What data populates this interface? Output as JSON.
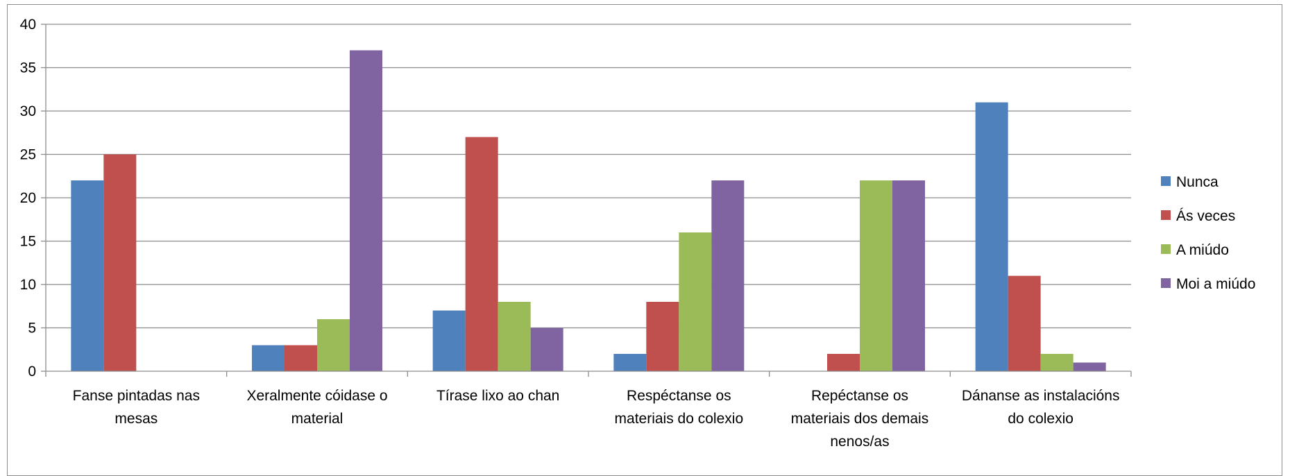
{
  "chart_data": {
    "type": "bar",
    "categories": [
      [
        "Fanse pintadas nas",
        "mesas"
      ],
      [
        "Xeralmente cóidase o",
        "material"
      ],
      [
        "Tírase lixo ao chan"
      ],
      [
        "Respéctanse os",
        "materiais do colexio"
      ],
      [
        "Repéctanse os",
        "materiais dos demais",
        "nenos/as"
      ],
      [
        "Dánanse as instalacións",
        "do colexio"
      ]
    ],
    "series": [
      {
        "name": "Nunca",
        "color": "#4F81BD",
        "values": [
          22,
          3,
          7,
          2,
          0,
          31
        ]
      },
      {
        "name": "Ás veces",
        "color": "#C0504D",
        "values": [
          25,
          3,
          27,
          8,
          2,
          11
        ]
      },
      {
        "name": "A miúdo",
        "color": "#9BBB59",
        "values": [
          0,
          6,
          8,
          16,
          22,
          2
        ]
      },
      {
        "name": "Moi a miúdo",
        "color": "#8064A2",
        "values": [
          0,
          37,
          5,
          22,
          22,
          1
        ]
      }
    ],
    "ylim": [
      0,
      40
    ],
    "yticks": [
      "0",
      "5",
      "10",
      "15",
      "20",
      "25",
      "30",
      "35",
      "40"
    ],
    "grid": true,
    "legend": "right",
    "title": "",
    "xlabel": "",
    "ylabel": ""
  }
}
